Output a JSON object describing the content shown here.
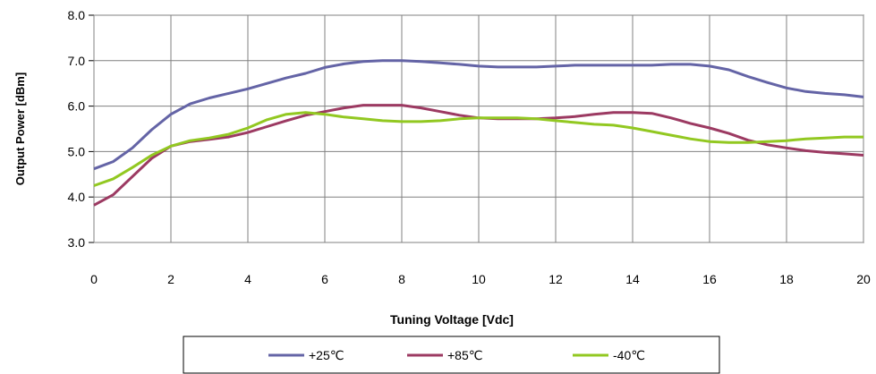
{
  "chart_data": {
    "type": "line",
    "title": "",
    "xlabel": "Tuning Voltage [Vdc]",
    "ylabel": "Output Power [dBm]",
    "xlim": [
      0,
      20
    ],
    "ylim": [
      3.0,
      8.0
    ],
    "x_ticks": [
      "0",
      "2",
      "4",
      "6",
      "8",
      "10",
      "12",
      "14",
      "16",
      "18",
      "20"
    ],
    "y_ticks": [
      "3.0",
      "4.0",
      "5.0",
      "6.0",
      "7.0",
      "8.0"
    ],
    "grid": true,
    "legend_position": "bottom",
    "x": [
      0,
      0.5,
      1,
      1.5,
      2,
      2.5,
      3,
      3.5,
      4,
      4.5,
      5,
      5.5,
      6,
      6.5,
      7,
      7.5,
      8,
      8.5,
      9,
      9.5,
      10,
      10.5,
      11,
      11.5,
      12,
      12.5,
      13,
      13.5,
      14,
      14.5,
      15,
      15.5,
      16,
      16.5,
      17,
      17.5,
      18,
      18.5,
      19,
      19.5,
      20
    ],
    "series": [
      {
        "name": "+25℃",
        "color": "#6464a6",
        "values": [
          4.62,
          4.78,
          5.08,
          5.48,
          5.82,
          6.05,
          6.18,
          6.28,
          6.38,
          6.5,
          6.62,
          6.72,
          6.85,
          6.93,
          6.98,
          7.0,
          7.0,
          6.98,
          6.95,
          6.92,
          6.88,
          6.86,
          6.86,
          6.86,
          6.88,
          6.9,
          6.9,
          6.9,
          6.9,
          6.9,
          6.92,
          6.92,
          6.88,
          6.8,
          6.65,
          6.52,
          6.4,
          6.32,
          6.28,
          6.25,
          6.2
        ]
      },
      {
        "name": "+85℃",
        "color": "#9c3a62",
        "values": [
          3.82,
          4.05,
          4.45,
          4.85,
          5.12,
          5.22,
          5.27,
          5.32,
          5.42,
          5.55,
          5.68,
          5.8,
          5.88,
          5.96,
          6.02,
          6.02,
          6.02,
          5.96,
          5.88,
          5.8,
          5.74,
          5.72,
          5.72,
          5.72,
          5.74,
          5.77,
          5.82,
          5.86,
          5.86,
          5.84,
          5.74,
          5.62,
          5.52,
          5.4,
          5.25,
          5.15,
          5.08,
          5.02,
          4.98,
          4.95,
          4.92
        ]
      },
      {
        "name": "-40℃",
        "color": "#92c821",
        "values": [
          4.25,
          4.4,
          4.65,
          4.92,
          5.12,
          5.24,
          5.3,
          5.38,
          5.52,
          5.7,
          5.82,
          5.86,
          5.82,
          5.76,
          5.72,
          5.68,
          5.66,
          5.66,
          5.68,
          5.72,
          5.74,
          5.74,
          5.74,
          5.72,
          5.68,
          5.64,
          5.6,
          5.58,
          5.52,
          5.44,
          5.36,
          5.28,
          5.22,
          5.2,
          5.2,
          5.22,
          5.24,
          5.28,
          5.3,
          5.32,
          5.32
        ]
      }
    ]
  }
}
